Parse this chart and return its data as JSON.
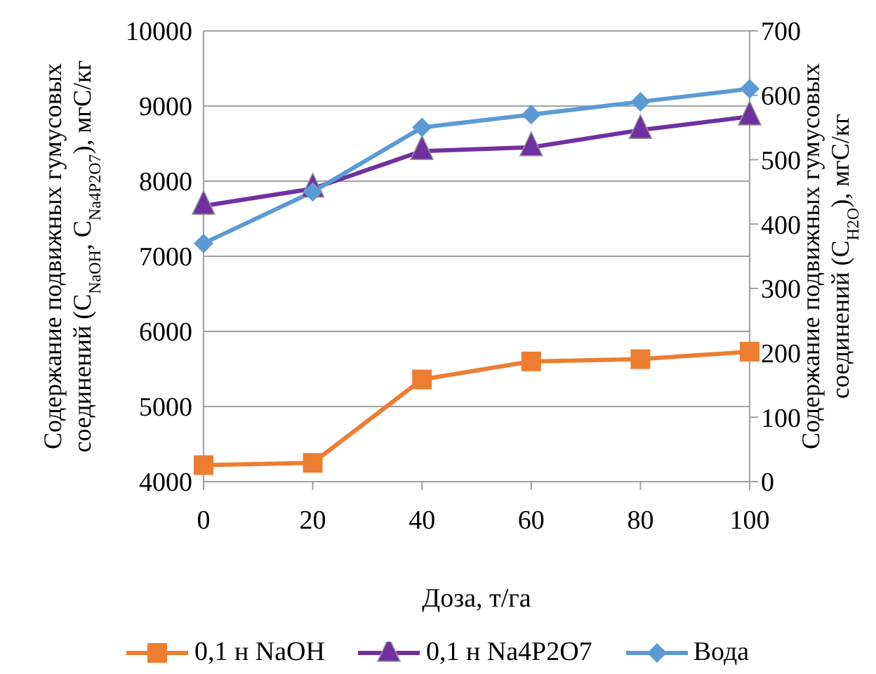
{
  "chart_data": {
    "type": "line",
    "categories": [
      "0",
      "20",
      "40",
      "60",
      "80",
      "100"
    ],
    "xlabel": "Доза, т/га",
    "ylabel": "Содержание подвижных гумусовых соединений (C$_{NaOH}$, C$_{Na4P2O7}$), мгС/кг",
    "y2label": "Содержание подвижных гумусовых соединений (C$_{H2O}$), мгС/кг",
    "series": [
      {
        "name": "0,1 н NaOH",
        "color": "#ed7d31",
        "marker": "square",
        "values": [
          4220,
          4250,
          5360,
          5600,
          5630,
          5730
        ]
      },
      {
        "name": "0,1 н Na4P2O7",
        "color": "#7030a0",
        "marker": "triangle",
        "values": [
          7670,
          7900,
          8400,
          8450,
          8680,
          8860
        ]
      },
      {
        "name": "Вода",
        "color": "#5b9bd5",
        "marker": "diamond",
        "axis": "y2",
        "values": [
          370,
          450,
          550,
          570,
          590,
          610
        ]
      }
    ],
    "ylim": [
      4000,
      10000
    ],
    "yticks": [
      4000,
      5000,
      6000,
      7000,
      8000,
      9000,
      10000
    ],
    "y2lim": [
      0,
      700
    ],
    "y2ticks": [
      0,
      100,
      200,
      300,
      400,
      500,
      600,
      700
    ],
    "grid": "y",
    "legend": "bottom",
    "line_style": "solid"
  }
}
